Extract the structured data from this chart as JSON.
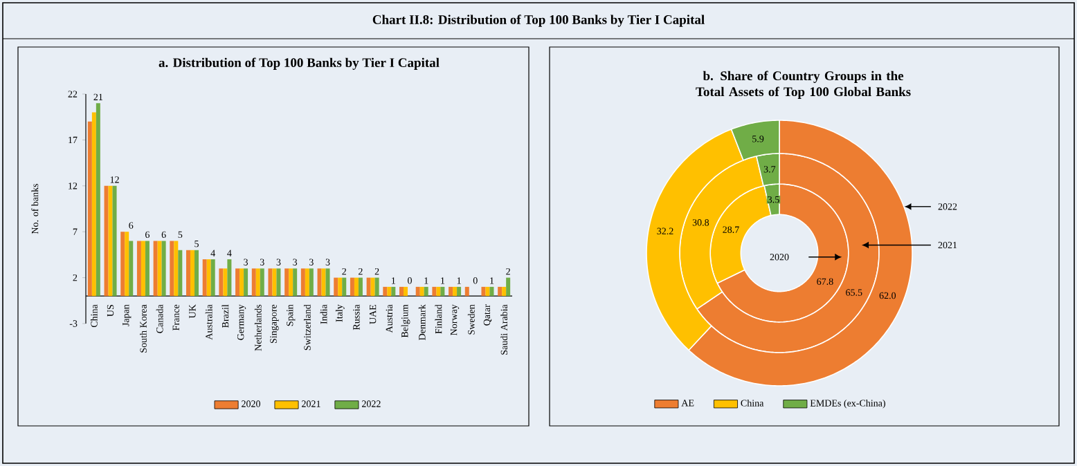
{
  "chart_data": [
    {
      "type": "bar",
      "title": "Chart II.8: Distribution of Top 100 Banks by Tier I Capital",
      "subtitle": "a. Distribution of Top 100 Banks by Tier I Capital",
      "ylabel": "No. of banks",
      "categories": [
        "China",
        "US",
        "Japan",
        "South Korea",
        "Canada",
        "France",
        "UK",
        "Australia",
        "Brazil",
        "Germany",
        "Netherlands",
        "Singapore",
        "Spain",
        "Switzerland",
        "India",
        "Italy",
        "Russia",
        "UAE",
        "Austria",
        "Belgium",
        "Denmark",
        "Finland",
        "Norway",
        "Sweden",
        "Qatar",
        "Saudi Arabia"
      ],
      "series": [
        {
          "name": "2020",
          "color": "#ed7d31",
          "values": [
            19,
            12,
            7,
            6,
            6,
            6,
            5,
            4,
            3,
            3,
            3,
            3,
            3,
            3,
            3,
            2,
            2,
            2,
            1,
            1,
            1,
            1,
            1,
            1,
            1,
            1
          ]
        },
        {
          "name": "2021",
          "color": "#ffc000",
          "values": [
            20,
            12,
            7,
            6,
            6,
            6,
            5,
            4,
            3,
            3,
            3,
            3,
            3,
            3,
            3,
            2,
            2,
            2,
            1,
            1,
            1,
            1,
            1,
            0,
            1,
            1
          ]
        },
        {
          "name": "2022",
          "color": "#70ad47",
          "values": [
            21,
            12,
            6,
            6,
            6,
            5,
            5,
            4,
            4,
            3,
            3,
            3,
            3,
            3,
            3,
            2,
            2,
            2,
            1,
            0,
            1,
            1,
            1,
            0,
            1,
            2
          ],
          "value_labels": [
            "21",
            "12",
            "6",
            "6",
            "6",
            "5",
            "5",
            "4",
            "4",
            "3",
            "3",
            "3",
            "3",
            "3",
            "3",
            "2",
            "2",
            "2",
            "1",
            "0",
            "1",
            "1",
            "1",
            "0",
            "1",
            "2"
          ]
        }
      ],
      "ylim": [
        -3,
        22
      ],
      "yticks": [
        -3,
        2,
        7,
        12,
        17,
        22
      ],
      "legend": "bottom"
    },
    {
      "type": "donut",
      "title": "b. Share of Country Groups in the Total Assets of Top 100 Global Banks",
      "categories": [
        "AE",
        "China",
        "EMDEs (ex-China)"
      ],
      "colors": [
        "#ed7d31",
        "#ffc000",
        "#70ad47"
      ],
      "series": [
        {
          "name": "2020",
          "values": [
            67.8,
            28.7,
            3.5
          ],
          "value_labels": [
            "67.8",
            "28.7",
            "3.5"
          ]
        },
        {
          "name": "2021",
          "values": [
            65.5,
            30.8,
            3.7
          ],
          "value_labels": [
            "65.5",
            "30.8",
            "3.7"
          ]
        },
        {
          "name": "2022",
          "values": [
            62.0,
            32.2,
            5.9
          ],
          "value_labels": [
            "62.0",
            "32.2",
            "5.9"
          ]
        }
      ],
      "legend": "bottom"
    }
  ]
}
